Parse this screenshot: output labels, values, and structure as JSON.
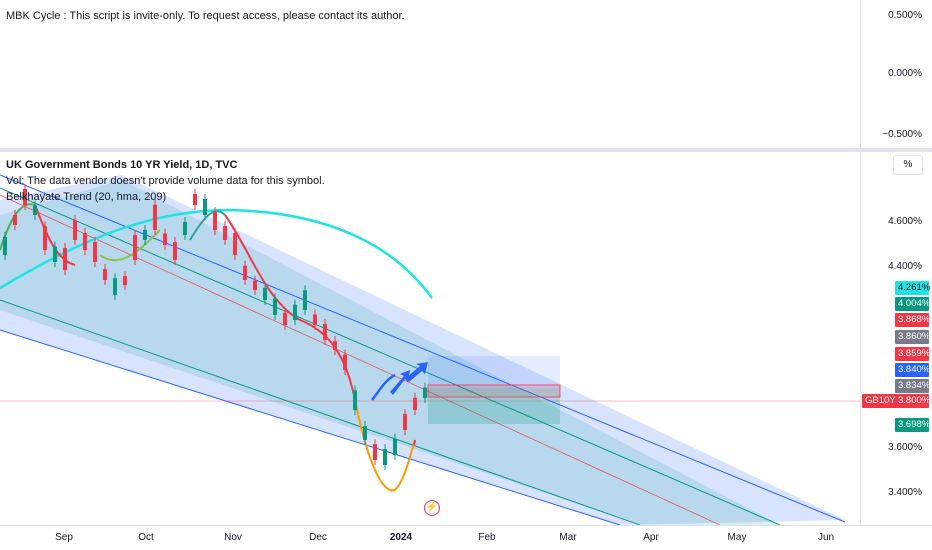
{
  "top_pane": {
    "legend": "MBK Cycle : This script is invite-only. To request access, please contact its author.",
    "axis_labels": [
      "0.500%",
      "0.000%",
      "−0.500%"
    ]
  },
  "main_pane": {
    "title": "UK Government Bonds 10 YR Yield, 1D, TVC",
    "vol_legend": "Vol: The data vendor doesn't provide volume data for this symbol.",
    "indicator_legend": "Belkhayate Trend (20, hma, 209)",
    "percent_button": "%",
    "axis_labels": [
      "4.600%",
      "4.400%",
      "3.600%",
      "3.400%"
    ],
    "symbol_badge": "GB10Y",
    "price_badges": [
      {
        "value": "4.261%",
        "color": "#1ee3e3",
        "text_color": "#131722"
      },
      {
        "value": "4.004%",
        "color": "#089981",
        "text_color": "#ffffff"
      },
      {
        "value": "3.868%",
        "color": "#f23645",
        "text_color": "#ffffff"
      },
      {
        "value": "3.860%",
        "color": "#787b86",
        "text_color": "#ffffff"
      },
      {
        "value": "3.859%",
        "color": "#f23645",
        "text_color": "#ffffff"
      },
      {
        "value": "3.840%",
        "color": "#2962ff",
        "text_color": "#ffffff"
      },
      {
        "value": "3.834%",
        "color": "#787b86",
        "text_color": "#ffffff"
      },
      {
        "value": "3.800%",
        "color": "#f23645",
        "text_color": "#ffffff"
      },
      {
        "value": "3.698%",
        "color": "#089981",
        "text_color": "#ffffff"
      }
    ],
    "event_icon": "lightning-icon"
  },
  "time_axis": {
    "labels": [
      "Sep",
      "Oct",
      "Nov",
      "Dec",
      "2024",
      "Feb",
      "Mar",
      "Apr",
      "May",
      "Jun"
    ]
  },
  "colors": {
    "up": "#089981",
    "down": "#f23645",
    "channel_fill": "#2962ff",
    "channel_inner": "#26a69a",
    "cycle": "#1ee3e3"
  }
}
